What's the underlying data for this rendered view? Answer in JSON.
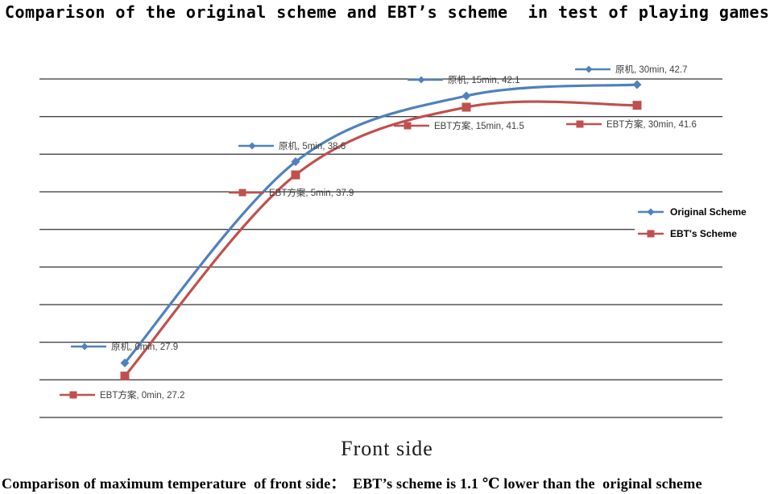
{
  "title": "Comparison of the original scheme and EBT’s scheme  in test of playing games",
  "caption": "Comparison of maximum temperature  of front side：  EBT’s scheme is 1.1 ℃ lower than the  original scheme",
  "chart_data": {
    "type": "line",
    "smoothed": true,
    "title": "Comparison of the original scheme and EBT’s scheme  in test of playing games",
    "categories": [
      "0min",
      "5min",
      "15min",
      "30min"
    ],
    "series": [
      {
        "name": "原机",
        "legend_label": "Original Scheme",
        "color": "#4F81BD",
        "marker": "diamond",
        "values": [
          27.9,
          38.6,
          42.1,
          42.7
        ],
        "point_labels": [
          "原机, 0min, 27.9",
          "原机, 5min, 38.6",
          "原机, 15min, 42.1",
          "原机, 30min, 42.7"
        ]
      },
      {
        "name": "EBT方案",
        "legend_label": "EBT's Scheme",
        "color": "#C0504D",
        "marker": "square",
        "values": [
          27.2,
          37.9,
          41.5,
          41.6
        ],
        "point_labels": [
          "EBT方案, 0min, 27.2",
          "EBT方案, 5min, 37.9",
          "EBT方案, 15min, 41.5",
          "EBT方案, 30min, 41.6"
        ]
      }
    ],
    "xlabel": "Front side",
    "ylabel": "",
    "ylim": [
      25,
      43
    ],
    "gridline_interval": 2,
    "grid": true,
    "gridline_color": "#000000",
    "legend_position": "right",
    "axis_tick_labels_visible": false,
    "data_label_color": "#404040"
  }
}
